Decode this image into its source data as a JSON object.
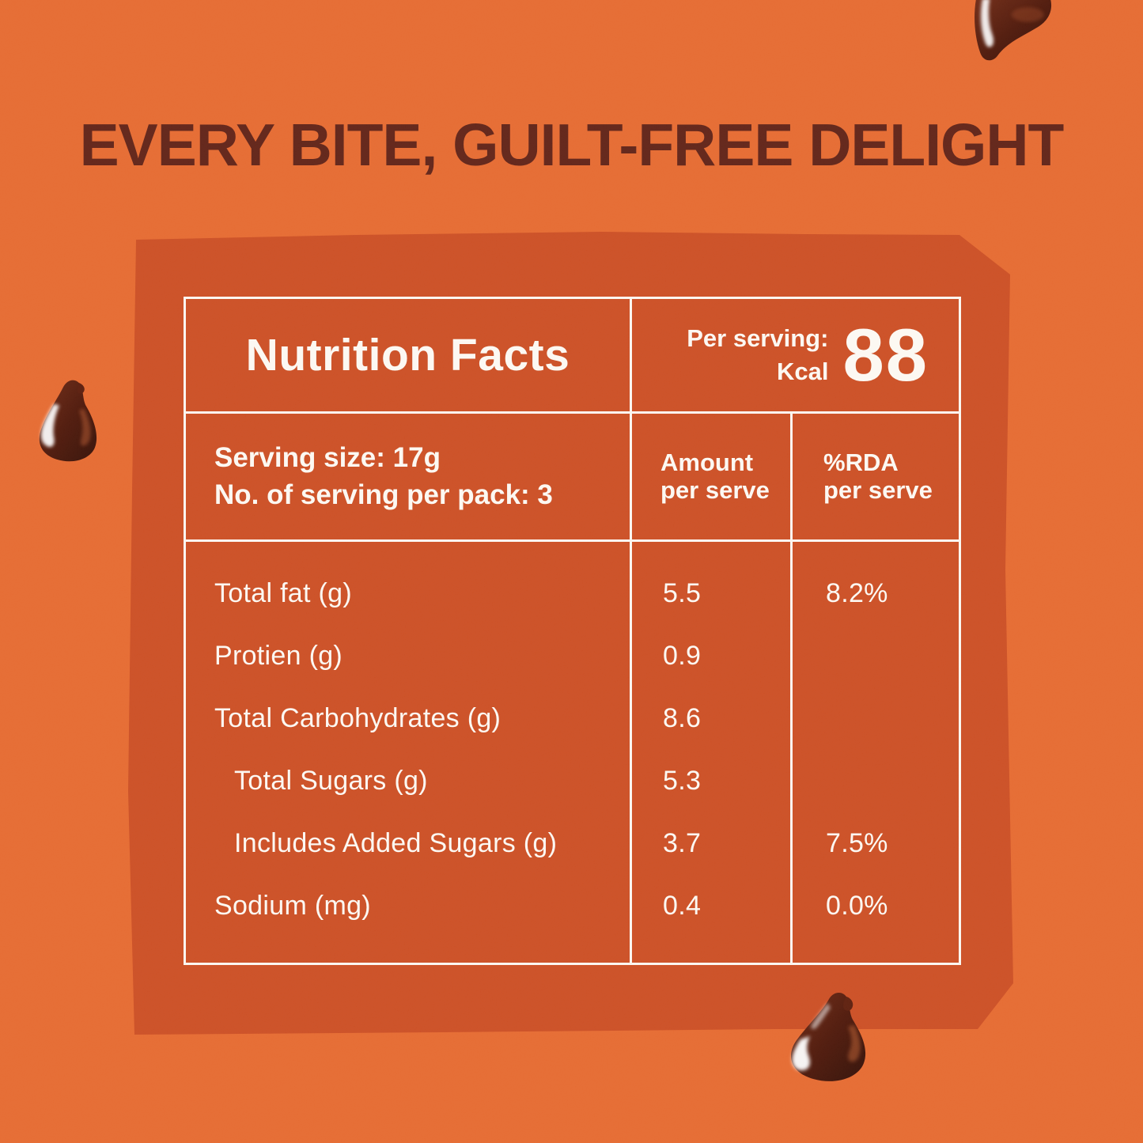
{
  "header": {
    "title": "EVERY BITE, GUILT-FREE DELIGHT"
  },
  "colors": {
    "background": "#E5672C",
    "panel": "#CB4B1F",
    "table_line": "#FBF6F0",
    "table_text": "#FCF8F2",
    "title_text": "#5E1E12",
    "chocolate_dark": "#2E0A02",
    "chocolate_mid": "#6E2610"
  },
  "nutrition_table": {
    "title": "Nutrition Facts",
    "per_serving_label": "Per serving:",
    "kcal_label": "Kcal",
    "kcal_value": "88",
    "serving_size": "Serving size: 17g",
    "servings_per_pack": "No. of serving per pack: 3",
    "columns": {
      "amount": {
        "line1": "Amount",
        "line2": "per serve"
      },
      "rda": {
        "line1": "%RDA",
        "line2": "per serve"
      }
    },
    "rows": [
      {
        "label": "Total fat (g)",
        "amount": "5.5",
        "rda": "8.2%",
        "indent": false
      },
      {
        "label": "Protien (g)",
        "amount": "0.9",
        "rda": "",
        "indent": false
      },
      {
        "label": "Total Carbohydrates (g)",
        "amount": "8.6",
        "rda": "",
        "indent": false
      },
      {
        "label": "Total Sugars (g)",
        "amount": "5.3",
        "rda": "",
        "indent": true
      },
      {
        "label": "Includes Added Sugars (g)",
        "amount": "3.7",
        "rda": "7.5%",
        "indent": true
      },
      {
        "label": "Sodium (mg)",
        "amount": "0.4",
        "rda": "0.0%",
        "indent": false
      }
    ]
  },
  "decorations": {
    "chip_top_right": "chocolate-chip-icon",
    "chip_left": "chocolate-chip-icon",
    "chip_bottom_right": "chocolate-chip-icon"
  }
}
